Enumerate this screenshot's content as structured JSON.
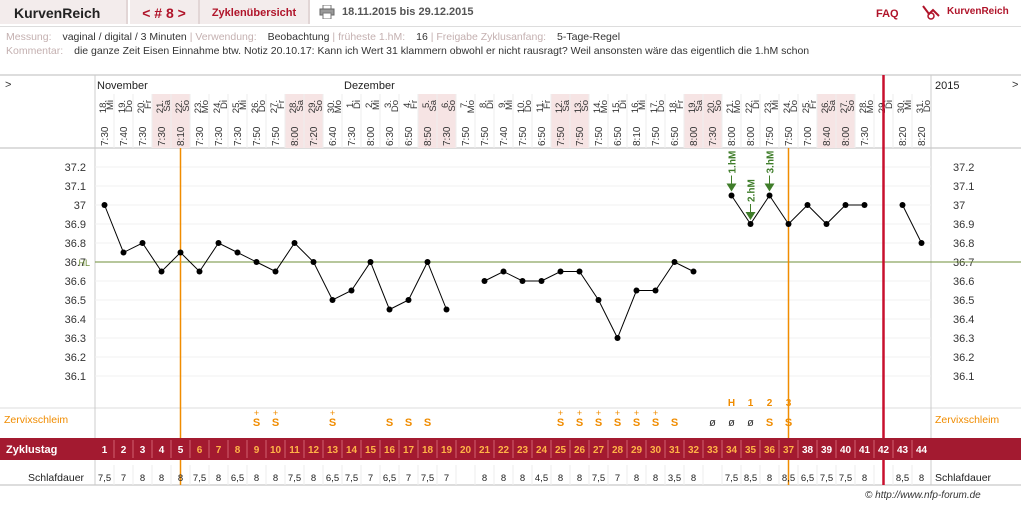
{
  "header": {
    "brand": "KurvenReich",
    "cycle_label": "< # 8 >",
    "overview_label": "Zyklenübersicht",
    "date_range": "18.11.2015 bis 29.12.2015",
    "faq": "FAQ",
    "logo_text": "KurvenReich"
  },
  "info": {
    "messung_label": "Messung:",
    "messung_value": "vaginal / digital / 3 Minuten",
    "verwendung_label": "Verwendung:",
    "verwendung_value": "Beobachtung",
    "frueheste_label": "früheste 1.hM:",
    "frueheste_value": "16",
    "freigabe_label": "Freigabe Zyklusanfang:",
    "freigabe_value": "5-Tage-Regel",
    "kommentar_label": "Kommentar:",
    "kommentar_value": "die ganze Zeit Eisen Einnahme btw. Notiz 20.10.17: Kann ich Wert 31 klammern obwohl er nicht rausragt? Weil ansonsten wäre das eigentlich die 1.hM schon"
  },
  "chart_data": {
    "type": "line",
    "nav_left": ">",
    "nav_right": ">",
    "year_label": "2015",
    "months": [
      {
        "label": "November",
        "index": 0
      },
      {
        "label": "Dezember",
        "index": 13
      }
    ],
    "dates": [
      "18.",
      "19.",
      "20.",
      "21.",
      "22.",
      "23.",
      "24.",
      "25.",
      "26.",
      "27.",
      "28.",
      "29.",
      "30.",
      "1.",
      "2.",
      "3.",
      "4.",
      "5.",
      "6.",
      "7.",
      "8.",
      "9.",
      "10.",
      "11.",
      "12.",
      "13.",
      "14.",
      "15.",
      "16.",
      "17.",
      "18.",
      "19.",
      "20.",
      "21.",
      "22.",
      "23.",
      "24.",
      "25.",
      "26.",
      "27.",
      "28.",
      "29.",
      "30.",
      "31."
    ],
    "weekdays": [
      "Mi",
      "Do",
      "Fr",
      "Sa",
      "So",
      "Mo",
      "Di",
      "Mi",
      "Do",
      "Fr",
      "Sa",
      "So",
      "Mo",
      "Di",
      "Mi",
      "Do",
      "Fr",
      "Sa",
      "So",
      "Mo",
      "Di",
      "Mi",
      "Do",
      "Fr",
      "Sa",
      "So",
      "Mo",
      "Di",
      "Mi",
      "Do",
      "Fr",
      "Sa",
      "So",
      "Mo",
      "Di",
      "Mi",
      "Do",
      "Fr",
      "Sa",
      "So",
      "Mo",
      "Di",
      "Mi",
      "Do"
    ],
    "weekend": [
      false,
      false,
      false,
      true,
      true,
      false,
      false,
      false,
      false,
      false,
      true,
      true,
      false,
      false,
      false,
      false,
      false,
      true,
      true,
      false,
      false,
      false,
      false,
      false,
      true,
      true,
      false,
      false,
      false,
      false,
      false,
      true,
      true,
      false,
      false,
      false,
      false,
      false,
      true,
      true,
      false,
      false,
      false,
      false
    ],
    "times": [
      "7:30",
      "7:40",
      "7:30",
      "7:30",
      "8:10",
      "7:30",
      "7:30",
      "7:30",
      "7:50",
      "7:50",
      "8:00",
      "7:20",
      "6:40",
      "7:30",
      "8:00",
      "6:30",
      "6:50",
      "8:50",
      "7:30",
      "7:50",
      "7:50",
      "7:40",
      "7:50",
      "6:50",
      "7:50",
      "7:50",
      "7:50",
      "6:50",
      "8:10",
      "7:50",
      "6:50",
      "8:00",
      "7:30",
      "8:00",
      "8:00",
      "7:50",
      "7:50",
      "7:00",
      "8:40",
      "8:00",
      "7:30",
      "",
      "8:20",
      "8:20"
    ],
    "temperatures": [
      37.0,
      36.75,
      36.8,
      36.65,
      36.75,
      36.65,
      36.8,
      36.75,
      36.7,
      36.65,
      36.8,
      36.7,
      36.5,
      36.55,
      36.7,
      36.45,
      36.5,
      36.7,
      36.45,
      null,
      36.6,
      36.65,
      36.6,
      36.6,
      36.65,
      36.65,
      36.5,
      36.3,
      36.55,
      36.55,
      36.7,
      36.65,
      null,
      37.05,
      36.9,
      37.05,
      36.9,
      37.0,
      36.9,
      37.0,
      37.0,
      null,
      37.0,
      36.8
    ],
    "ylim": [
      36.0,
      37.3
    ],
    "yticks": [
      36.1,
      36.2,
      36.3,
      36.4,
      36.5,
      36.6,
      36.7,
      36.8,
      36.9,
      37.0,
      37.1,
      37.2
    ],
    "ytick_labels": [
      "36.1",
      "36.2",
      "36.3",
      "36.4",
      "36.5",
      "36.6",
      "36.7",
      "36.8",
      "36.9",
      "37",
      "37.1",
      "37.2"
    ],
    "hl_label": "HL",
    "hl_value": 36.7,
    "hm_markers": [
      {
        "label": "1.hM",
        "index": 33
      },
      {
        "label": "2.hM",
        "index": 34
      },
      {
        "label": "3.hM",
        "index": 35
      }
    ],
    "vlines_orange": [
      4.5,
      36.5
    ],
    "vline_red": 41.5,
    "cervix_label": "Zervixschleim",
    "cervix": [
      "",
      "",
      "",
      "",
      "",
      "",
      "",
      "",
      "S+",
      "S+",
      "",
      "",
      "S+",
      "",
      "",
      "S",
      "S",
      "S",
      "",
      "",
      "",
      "",
      "",
      "",
      "S+",
      "S+",
      "S+",
      "S+",
      "S+",
      "S+",
      "S",
      "",
      "ø",
      "ø",
      "ø",
      "S",
      "S",
      "",
      "",
      "",
      "",
      "",
      "",
      ""
    ],
    "peak_labels": [
      {
        "label": "H",
        "index": 33
      },
      {
        "label": "1",
        "index": 34
      },
      {
        "label": "2",
        "index": 35
      },
      {
        "label": "3",
        "index": 36
      }
    ],
    "cycle_label": "Zyklustag",
    "cycle_days": [
      "1",
      "2",
      "3",
      "4",
      "5",
      "6",
      "7",
      "8",
      "9",
      "10",
      "11",
      "12",
      "13",
      "14",
      "15",
      "16",
      "17",
      "18",
      "19",
      "20",
      "21",
      "22",
      "23",
      "24",
      "25",
      "26",
      "27",
      "28",
      "29",
      "30",
      "31",
      "32",
      "33",
      "34",
      "35",
      "36",
      "37",
      "38",
      "39",
      "40",
      "41",
      "42",
      "43",
      "44"
    ],
    "sleep_label": "Schlafdauer",
    "sleep": [
      "7,5",
      "7",
      "8",
      "8",
      "8",
      "7,5",
      "8",
      "6,5",
      "8",
      "8",
      "7,5",
      "8",
      "6,5",
      "7,5",
      "7",
      "6,5",
      "7",
      "7,5",
      "7",
      "",
      "8",
      "8",
      "8",
      "4,5",
      "8",
      "8",
      "7,5",
      "7",
      "8",
      "8",
      "3,5",
      "8",
      "",
      "7,5",
      "8,5",
      "8",
      "8,5",
      "6,5",
      "7,5",
      "7,5",
      "8",
      "",
      "8,5",
      "8"
    ]
  },
  "footer": {
    "copyright": "© http://www.nfp-forum.de"
  },
  "colors": {
    "brand_red": "#b0142a",
    "orange": "#f08c00",
    "weekend_bg": "#f6e4e4",
    "cycle_bar": "#a31a30",
    "hl_line": "#6f8f3a",
    "hm_green": "#3f7d2a"
  }
}
